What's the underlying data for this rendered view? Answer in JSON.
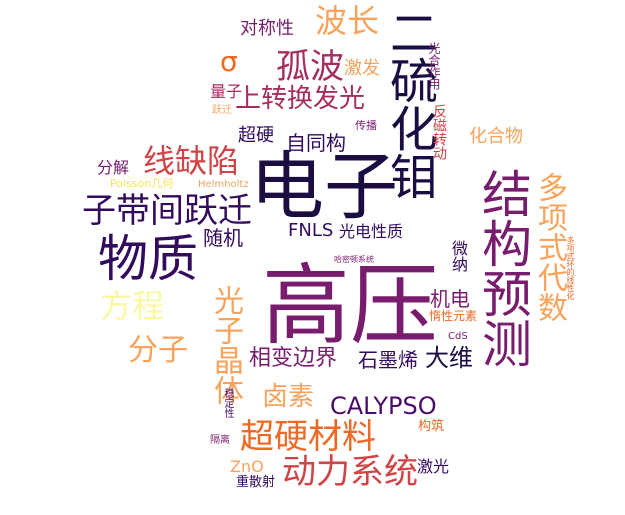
{
  "palette": {
    "darkest": "#1b0c41",
    "deep_purple": "#4a0c6b",
    "purple": "#781c6d",
    "magenta": "#a52c60",
    "red": "#cf4446",
    "orange": "#ed6925",
    "light_orange": "#f7a35c",
    "yellow": "#f3e55c",
    "pale_yellow": "#fcf7a5"
  },
  "words": [
    {
      "text": "高压",
      "color": "#781c6d"
    },
    {
      "text": "电子",
      "color": "#1b0c41"
    },
    {
      "text": "物质",
      "color": "#320a5e"
    },
    {
      "text": "结构预测",
      "color": "#781c6d"
    },
    {
      "text": "二硫化钼",
      "color": "#1b0c41"
    },
    {
      "text": "子带间跃迁",
      "color": "#320a5e"
    },
    {
      "text": "线缺陷",
      "color": "#cf4446"
    },
    {
      "text": "超硬材料",
      "color": "#ed6925"
    },
    {
      "text": "动力系统",
      "color": "#cf4446"
    },
    {
      "text": "孤波",
      "color": "#a52c60"
    },
    {
      "text": "波长",
      "color": "#f7a35c"
    },
    {
      "text": "多项式代数",
      "color": "#f7a35c"
    },
    {
      "text": "光子晶体",
      "color": "#f7a35c"
    },
    {
      "text": "方程",
      "color": "#fcf7a5"
    },
    {
      "text": "分子",
      "color": "#f7a35c"
    },
    {
      "text": "CALYPSO",
      "color": "#4a0c6b"
    },
    {
      "text": "上转换发光",
      "color": "#a52c60"
    },
    {
      "text": "卤素",
      "color": "#f7a35c"
    },
    {
      "text": "相变边界",
      "color": "#781c6d"
    },
    {
      "text": "大维",
      "color": "#1b0c41"
    },
    {
      "text": "石墨烯",
      "color": "#320a5e"
    },
    {
      "text": "σ",
      "color": "#ed6925"
    },
    {
      "text": "自同构",
      "color": "#320a5e"
    },
    {
      "text": "机电",
      "color": "#781c6d"
    },
    {
      "text": "FNLS",
      "color": "#320a5e"
    },
    {
      "text": "光电性质",
      "color": "#320a5e"
    },
    {
      "text": "随机",
      "color": "#320a5e"
    },
    {
      "text": "对称性",
      "color": "#781c6d"
    },
    {
      "text": "激发",
      "color": "#f7a35c"
    },
    {
      "text": "超硬",
      "color": "#320a5e"
    },
    {
      "text": "化合物",
      "color": "#f7a35c"
    },
    {
      "text": "分解",
      "color": "#781c6d"
    },
    {
      "text": "量子",
      "color": "#a52c60"
    },
    {
      "text": "ZnO",
      "color": "#f7a35c"
    },
    {
      "text": "激光",
      "color": "#320a5e"
    },
    {
      "text": "微纳",
      "color": "#320a5e"
    },
    {
      "text": "惰性元素",
      "color": "#ed6925"
    },
    {
      "text": "反磁转动",
      "color": "#cf4446"
    },
    {
      "text": "光合作用",
      "color": "#781c6d"
    },
    {
      "text": "传播",
      "color": "#781c6d"
    },
    {
      "text": "构筑",
      "color": "#ed6925"
    },
    {
      "text": "重散射",
      "color": "#320a5e"
    },
    {
      "text": "跃迁",
      "color": "#f7a35c"
    },
    {
      "text": "Poisson几何",
      "color": "#f3e55c"
    },
    {
      "text": "Helmholtz",
      "color": "#f7a35c"
    },
    {
      "text": "哈密顿系统",
      "color": "#781c6d"
    },
    {
      "text": "CdS",
      "color": "#781c6d"
    },
    {
      "text": "稳定性",
      "color": "#4a0c6b"
    },
    {
      "text": "隔离",
      "color": "#781c6d"
    },
    {
      "text": "多项式环的线性化",
      "color": "#ed6925"
    }
  ]
}
